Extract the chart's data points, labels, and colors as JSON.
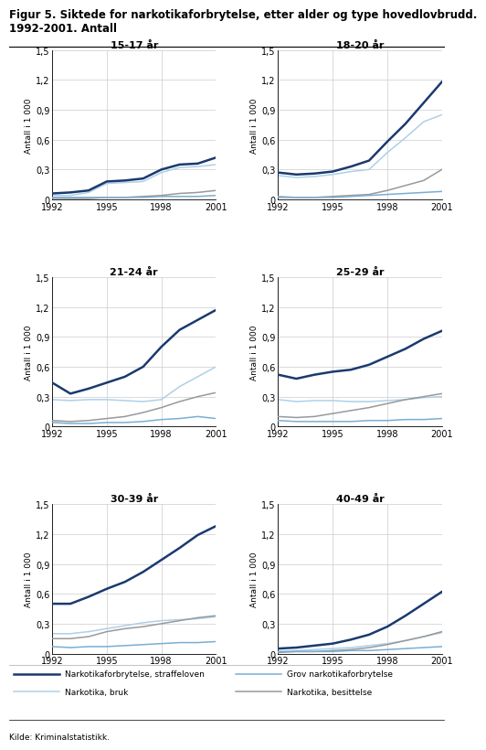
{
  "title_line1": "Figur 5. Siktede for narkotikaforbrytelse, etter alder og type hovedlovbrudd.",
  "title_line2": "1992-2001. Antall",
  "source": "Kilde: Kriminalstatistikk.",
  "years": [
    1992,
    1993,
    1994,
    1995,
    1996,
    1997,
    1998,
    1999,
    2000,
    2001
  ],
  "panels": [
    {
      "title": "15-17 år",
      "straffeloven": [
        0.06,
        0.07,
        0.09,
        0.18,
        0.19,
        0.21,
        0.3,
        0.35,
        0.36,
        0.42
      ],
      "grov": [
        0.02,
        0.02,
        0.02,
        0.02,
        0.02,
        0.02,
        0.03,
        0.03,
        0.03,
        0.04
      ],
      "bruk": [
        0.04,
        0.04,
        0.07,
        0.16,
        0.17,
        0.18,
        0.27,
        0.32,
        0.33,
        0.35
      ],
      "besittelse": [
        0.01,
        0.01,
        0.01,
        0.02,
        0.02,
        0.03,
        0.04,
        0.06,
        0.07,
        0.09
      ]
    },
    {
      "title": "18-20 år",
      "straffeloven": [
        0.27,
        0.25,
        0.26,
        0.28,
        0.33,
        0.39,
        0.58,
        0.76,
        0.97,
        1.18
      ],
      "grov": [
        0.03,
        0.02,
        0.02,
        0.02,
        0.03,
        0.04,
        0.05,
        0.06,
        0.07,
        0.08
      ],
      "bruk": [
        0.24,
        0.22,
        0.23,
        0.25,
        0.28,
        0.3,
        0.47,
        0.62,
        0.78,
        0.85
      ],
      "besittelse": [
        0.02,
        0.02,
        0.02,
        0.03,
        0.04,
        0.05,
        0.09,
        0.14,
        0.19,
        0.3
      ]
    },
    {
      "title": "21-24 år",
      "straffeloven": [
        0.44,
        0.33,
        0.38,
        0.44,
        0.5,
        0.6,
        0.8,
        0.97,
        1.07,
        1.17
      ],
      "grov": [
        0.04,
        0.03,
        0.03,
        0.04,
        0.04,
        0.05,
        0.07,
        0.08,
        0.1,
        0.08
      ],
      "bruk": [
        0.27,
        0.26,
        0.27,
        0.27,
        0.26,
        0.25,
        0.27,
        0.4,
        0.5,
        0.6
      ],
      "besittelse": [
        0.06,
        0.05,
        0.06,
        0.08,
        0.1,
        0.14,
        0.19,
        0.25,
        0.3,
        0.34
      ]
    },
    {
      "title": "25-29 år",
      "straffeloven": [
        0.52,
        0.48,
        0.52,
        0.55,
        0.57,
        0.62,
        0.7,
        0.78,
        0.88,
        0.96
      ],
      "grov": [
        0.06,
        0.05,
        0.05,
        0.05,
        0.05,
        0.06,
        0.06,
        0.07,
        0.07,
        0.08
      ],
      "bruk": [
        0.27,
        0.25,
        0.26,
        0.26,
        0.25,
        0.25,
        0.26,
        0.27,
        0.29,
        0.3
      ],
      "besittelse": [
        0.1,
        0.09,
        0.1,
        0.13,
        0.16,
        0.19,
        0.23,
        0.27,
        0.3,
        0.33
      ]
    },
    {
      "title": "30-39 år",
      "straffeloven": [
        0.5,
        0.5,
        0.57,
        0.65,
        0.72,
        0.82,
        0.94,
        1.06,
        1.19,
        1.28
      ],
      "grov": [
        0.07,
        0.06,
        0.07,
        0.07,
        0.08,
        0.09,
        0.1,
        0.11,
        0.11,
        0.12
      ],
      "bruk": [
        0.2,
        0.2,
        0.22,
        0.25,
        0.28,
        0.31,
        0.33,
        0.34,
        0.35,
        0.37
      ],
      "besittelse": [
        0.15,
        0.15,
        0.17,
        0.22,
        0.25,
        0.27,
        0.3,
        0.33,
        0.36,
        0.38
      ]
    },
    {
      "title": "40-49 år",
      "straffeloven": [
        0.05,
        0.06,
        0.08,
        0.1,
        0.14,
        0.19,
        0.27,
        0.38,
        0.5,
        0.62
      ],
      "grov": [
        0.02,
        0.02,
        0.02,
        0.02,
        0.03,
        0.03,
        0.04,
        0.05,
        0.06,
        0.07
      ],
      "bruk": [
        0.02,
        0.03,
        0.04,
        0.05,
        0.06,
        0.08,
        0.1,
        0.13,
        0.17,
        0.21
      ],
      "besittelse": [
        0.01,
        0.02,
        0.02,
        0.03,
        0.04,
        0.06,
        0.09,
        0.13,
        0.17,
        0.22
      ]
    }
  ],
  "colors": {
    "straffeloven": "#1a3a6e",
    "grov": "#7aaed4",
    "bruk": "#aed0e8",
    "besittelse": "#999999"
  },
  "ylim": [
    0,
    1.5
  ],
  "yticks": [
    0,
    0.3,
    0.6,
    0.9,
    1.2,
    1.5
  ],
  "xticks": [
    1992,
    1995,
    1998,
    2001
  ],
  "ylabel": "Antall i 1 000",
  "legend_labels": {
    "straffeloven": "Narkotikaforbrytelse, straffeloven",
    "grov": "Grov narkotikaforbrytelse",
    "bruk": "Narkotika, bruk",
    "besittelse": "Narkotika, besittelse"
  }
}
